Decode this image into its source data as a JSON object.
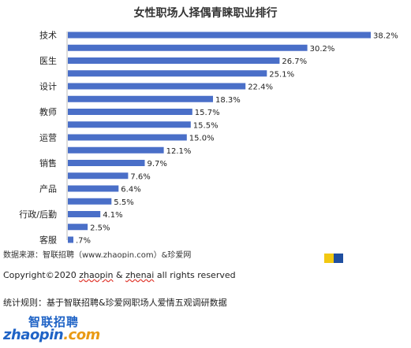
{
  "chart_data": {
    "type": "bar",
    "orientation": "horizontal",
    "title": "女性职场人择偶青睐职业排行",
    "categories": [
      "技术",
      "",
      "医生",
      "",
      "设计",
      "",
      "教师",
      "",
      "运营",
      "",
      "销售",
      "",
      "产品",
      "",
      "行政/后勤",
      "",
      "客服"
    ],
    "values": [
      38.2,
      30.2,
      26.7,
      25.1,
      22.4,
      18.3,
      15.7,
      15.5,
      15.0,
      12.1,
      9.7,
      7.6,
      6.4,
      5.5,
      4.1,
      2.5,
      0.7
    ],
    "value_labels": [
      "38.2%",
      "30.2%",
      "26.7%",
      "25.1%",
      "22.4%",
      "18.3%",
      "15.7%",
      "15.5%",
      "15.0%",
      "12.1%",
      "9.7%",
      "7.6%",
      "6.4%",
      "5.5%",
      "4.1%",
      "2.5%",
      ".7%"
    ],
    "xlim": [
      0,
      38.2
    ],
    "grid": false,
    "bar_color": "#4a6fc8"
  },
  "footer": {
    "source": "数据来源：智联招聘（www.zhaopin.com）&珍爱网",
    "copyright_prefix": "Copyright©2020 ",
    "copyright_brand_1": "zhaopin",
    "copyright_mid": " & ",
    "copyright_brand_2": "zhenai",
    "copyright_suffix": "  all rights reserved",
    "method": "统计规则：基于智联招聘&珍爱网职场人爱情五观调研数据"
  },
  "logo": {
    "cn": "智联招聘",
    "en_1": "zhaopin",
    "en_2": ".com"
  },
  "colors": {
    "accent_yellow": "#f2c811",
    "accent_blue": "#1f4fa0",
    "logo_blue": "#1f63c6",
    "logo_orange": "#e99a14"
  }
}
